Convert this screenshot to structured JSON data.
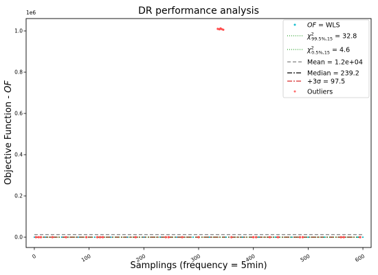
{
  "chart_data": {
    "type": "scatter",
    "title": "DR performance analysis",
    "xlabel": "Samplings (frequency = 5min)",
    "ylabel_prefix": "Objective Function - ",
    "ylabel_symbol": "OF",
    "y_multiplier": "1e6",
    "xlim": [
      -15,
      615
    ],
    "ylim": [
      -0.05,
      1.06
    ],
    "xticks": [
      0,
      100,
      200,
      300,
      400,
      500,
      600
    ],
    "xtick_labels": [
      "0",
      "100",
      "200",
      "300",
      "400",
      "500",
      "600"
    ],
    "yticks": [
      0.0,
      0.2,
      0.4,
      0.6,
      0.8,
      1.0
    ],
    "ytick_labels": [
      "0.0",
      "0.2",
      "0.4",
      "0.6",
      "0.8",
      "1.0"
    ],
    "grid": false,
    "legend_placement": "top-right",
    "legend": [
      {
        "key": "wls",
        "style": "marker",
        "color": "#17becf",
        "symbol": "OF",
        "text": " = WLS"
      },
      {
        "key": "chi_high",
        "style": "dotted",
        "color": "#2ca02c",
        "sub": "99.5%,15",
        "text": " = 32.8"
      },
      {
        "key": "chi_low",
        "style": "dotted",
        "color": "#2ca02c",
        "sub": "0.5%,15",
        "text": " = 4.6"
      },
      {
        "key": "mean",
        "style": "dashed",
        "color": "#7f7f7f",
        "text": "Mean = 1.2e+04"
      },
      {
        "key": "median",
        "style": "dashdot",
        "color": "#000000",
        "text": "Median = 239.2"
      },
      {
        "key": "sigma",
        "style": "dashdot",
        "color": "#d62728",
        "text": "+3σ = 97.5"
      },
      {
        "key": "outliers",
        "style": "marker",
        "color": "#ff6b6b",
        "text": "Outliers"
      }
    ],
    "reference_lines": [
      {
        "name": "Mean",
        "value": 12000,
        "color": "#7f7f7f",
        "dash": "5,3"
      },
      {
        "name": "Median",
        "value": 239.2,
        "color": "#000000",
        "dash": "7,2,2,2"
      },
      {
        "name": "+3σ",
        "value": 97.5,
        "color": "#d62728",
        "dash": "7,2,2,2"
      },
      {
        "name": "chi2_99.5",
        "value": 32.8,
        "color": "#2ca02c",
        "dash": "1,2"
      },
      {
        "name": "chi2_0.5",
        "value": 4.6,
        "color": "#2ca02c",
        "dash": "1,2"
      }
    ],
    "series": [
      {
        "key": "wls",
        "color": "#17becf",
        "x": [
          0,
          20,
          50,
          80,
          110,
          140,
          170,
          200,
          230,
          260,
          290,
          320,
          350,
          380,
          410,
          440,
          470,
          500,
          530,
          560,
          590,
          600
        ],
        "y": [
          0.0002,
          0.0001,
          0.0003,
          0.0001,
          0.0002,
          0.0001,
          0.0002,
          0.0001,
          0.0003,
          0.0002,
          0.0001,
          0.0002,
          0.0001,
          0.0002,
          0.0003,
          0.0001,
          0.0002,
          0.0001,
          0.0002,
          0.0001,
          0.0002,
          0.0001
        ]
      },
      {
        "key": "outliers",
        "color": "#ff4d4d",
        "x": [
          3,
          8,
          12,
          33,
          58,
          95,
          115,
          120,
          125,
          185,
          240,
          245,
          270,
          300,
          335,
          338,
          340,
          342,
          345,
          360,
          400,
          405,
          430,
          445,
          485,
          490,
          560,
          565,
          595
        ],
        "y": [
          0.0,
          0.0,
          0.0,
          0.0,
          0.0,
          0.0,
          0.0,
          0.0,
          0.0,
          0.0,
          0.0,
          0.0,
          0.0,
          0.0,
          1.01,
          1.008,
          1.012,
          1.009,
          1.006,
          0.0,
          0.0,
          0.0,
          0.0,
          0.0,
          0.0,
          0.0,
          0.0,
          0.0,
          0.0
        ]
      }
    ]
  }
}
